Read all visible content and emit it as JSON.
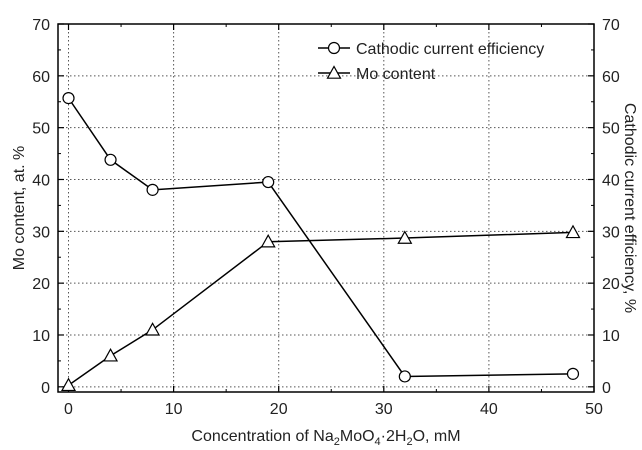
{
  "chart_data": {
    "type": "line",
    "xlabel": {
      "prefix": "Concentration of Na",
      "sub1": "2",
      "mid1": "MoO",
      "sub2": "4",
      "mid2": "·2H",
      "sub3": "2",
      "suffix": "O, mM"
    },
    "ylabel_left": "Mo content, at. %",
    "ylabel_right": "Cathodic current efficiency, %",
    "xlim": [
      -1,
      50
    ],
    "ylim": [
      -1,
      70
    ],
    "xticks": [
      0,
      10,
      20,
      30,
      40,
      50
    ],
    "yticks": [
      0,
      10,
      20,
      30,
      40,
      50,
      60,
      70
    ],
    "grid": true,
    "legend_position": "top-right",
    "series": [
      {
        "name": "Cathodic current efficiency",
        "marker": "circle",
        "axis": "right",
        "x": [
          0,
          4,
          8,
          19,
          32,
          48
        ],
        "y": [
          55.7,
          43.8,
          38.0,
          39.5,
          2.0,
          2.5
        ]
      },
      {
        "name": "Mo content",
        "marker": "triangle",
        "axis": "left",
        "x": [
          0,
          4,
          8,
          19,
          32,
          48
        ],
        "y": [
          0.3,
          6.0,
          11.0,
          28.0,
          28.7,
          29.8
        ]
      }
    ]
  }
}
